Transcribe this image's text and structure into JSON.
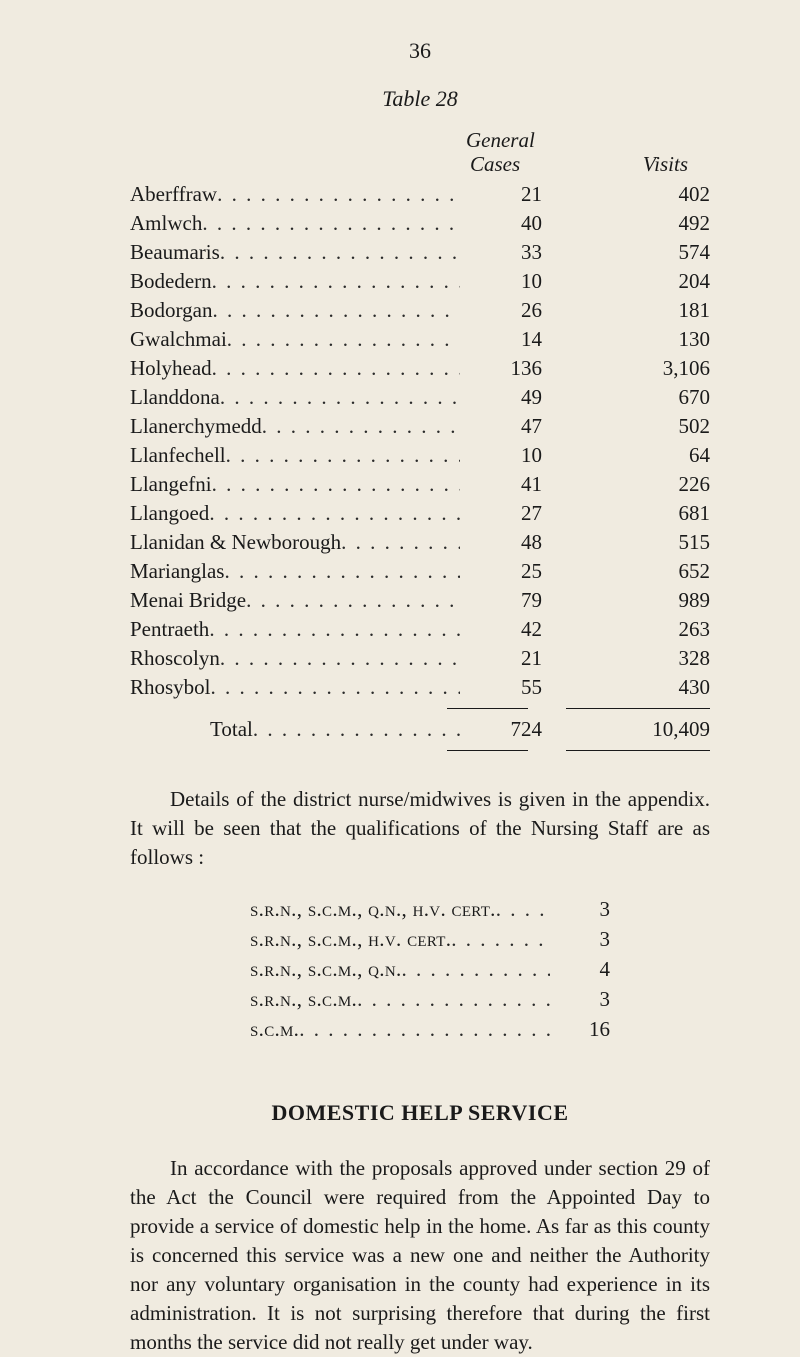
{
  "page_number": "36",
  "table_label": "Table 28",
  "headers": {
    "general": "General",
    "cases": "Cases",
    "visits": "Visits"
  },
  "rows": [
    {
      "label": "Aberffraw",
      "cases": "21",
      "visits": "402"
    },
    {
      "label": "Amlwch",
      "cases": "40",
      "visits": "492"
    },
    {
      "label": "Beaumaris",
      "cases": "33",
      "visits": "574"
    },
    {
      "label": "Bodedern",
      "cases": "10",
      "visits": "204"
    },
    {
      "label": "Bodorgan",
      "cases": "26",
      "visits": "181"
    },
    {
      "label": "Gwalchmai",
      "cases": "14",
      "visits": "130"
    },
    {
      "label": "Holyhead",
      "cases": "136",
      "visits": "3,106"
    },
    {
      "label": "Llanddona",
      "cases": "49",
      "visits": "670"
    },
    {
      "label": "Llanerchymedd",
      "cases": "47",
      "visits": "502"
    },
    {
      "label": "Llanfechell",
      "cases": "10",
      "visits": "64"
    },
    {
      "label": "Llangefni",
      "cases": "41",
      "visits": "226"
    },
    {
      "label": "Llangoed",
      "cases": "27",
      "visits": "681"
    },
    {
      "label": "Llanidan & Newborough",
      "cases": "48",
      "visits": "515"
    },
    {
      "label": "Marianglas",
      "cases": "25",
      "visits": "652"
    },
    {
      "label": "Menai Bridge",
      "cases": "79",
      "visits": "989"
    },
    {
      "label": "Pentraeth",
      "cases": "42",
      "visits": "263"
    },
    {
      "label": "Rhoscolyn",
      "cases": "21",
      "visits": "328"
    },
    {
      "label": "Rhosybol",
      "cases": "55",
      "visits": "430"
    }
  ],
  "total": {
    "label": "Total",
    "cases": "724",
    "visits": "10,409"
  },
  "paragraph1": "Details of the district nurse/midwives is given in the appendix. It will be seen that the qualifications of the Nursing Staff are as follows :",
  "qualifications": [
    {
      "label": "s.r.n., s.c.m., q.n., h.v. cert.",
      "value": "3"
    },
    {
      "label": "s.r.n., s.c.m., h.v. cert.",
      "value": "3"
    },
    {
      "label": "s.r.n., s.c.m., q.n.",
      "value": "4"
    },
    {
      "label": "s.r.n., s.c.m.",
      "value": "3"
    },
    {
      "label": "s.c.m.",
      "value": "16"
    }
  ],
  "section_header": "DOMESTIC HELP SERVICE",
  "paragraph2": "In accordance with the proposals approved under section 29 of the Act the Council were required from the Appointed Day to provide a service of domestic help in the home. As far as this county is concerned this service was a new one and neither the Authority nor any voluntary organisation in the county had experience in its administration. It is not surprising therefore that during the first months the service did not really get under way.",
  "style": {
    "background_color": "#f0ebe0",
    "text_color": "#1a1a1a",
    "body_fontsize": 21,
    "line_height": 29
  }
}
